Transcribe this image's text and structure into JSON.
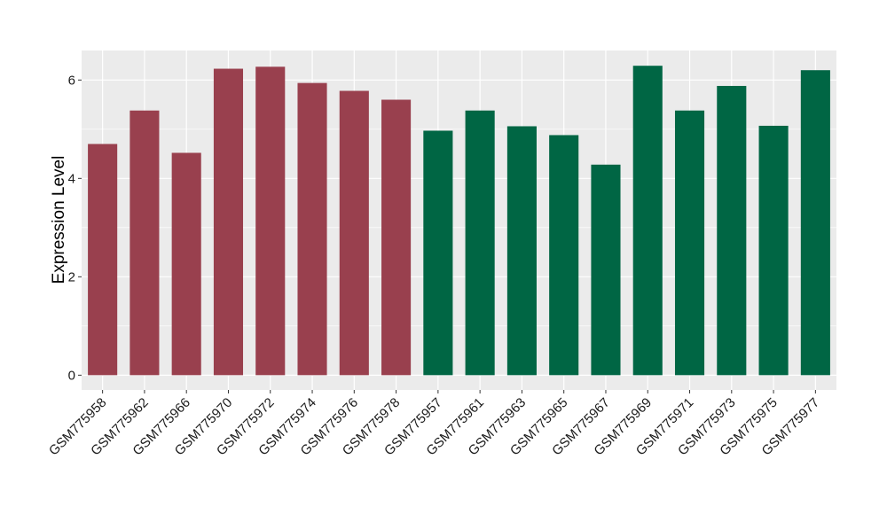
{
  "chart_data": {
    "type": "bar",
    "ylabel": "Expression Level",
    "xlabel": "",
    "ylim": [
      -0.3,
      6.6
    ],
    "yticks": [
      0,
      2,
      4,
      6
    ],
    "grid": true,
    "panel_background": "#ebebeb",
    "grid_color": "#ffffff",
    "categories": [
      "GSM775958",
      "GSM775962",
      "GSM775966",
      "GSM775970",
      "GSM775972",
      "GSM775974",
      "GSM775976",
      "GSM775978",
      "GSM775957",
      "GSM775961",
      "GSM775963",
      "GSM775965",
      "GSM775967",
      "GSM775969",
      "GSM775971",
      "GSM775973",
      "GSM775975",
      "GSM775977"
    ],
    "values": [
      4.7,
      5.38,
      4.52,
      6.23,
      6.27,
      5.94,
      5.78,
      5.6,
      4.97,
      5.38,
      5.06,
      4.88,
      4.28,
      6.29,
      5.38,
      5.88,
      5.07,
      6.2
    ],
    "bar_colors": [
      "#99404e",
      "#99404e",
      "#99404e",
      "#99404e",
      "#99404e",
      "#99404e",
      "#99404e",
      "#99404e",
      "#006644",
      "#006644",
      "#006644",
      "#006644",
      "#006644",
      "#006644",
      "#006644",
      "#006644",
      "#006644",
      "#006644"
    ]
  }
}
